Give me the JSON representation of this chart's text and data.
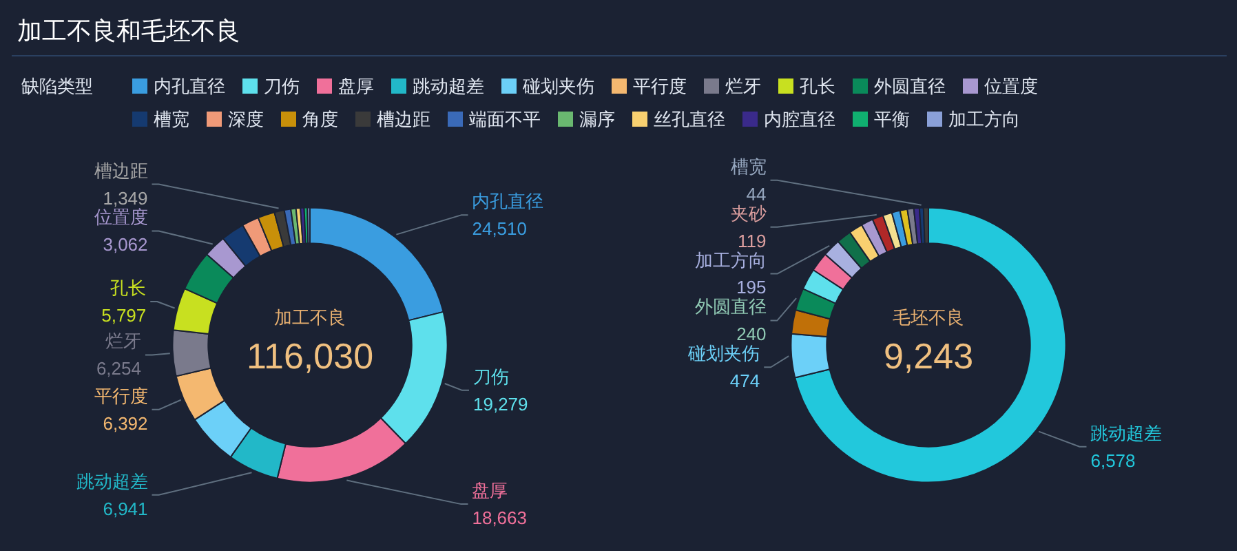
{
  "chart_data": [
    {
      "type": "donut",
      "title": "加工不良和毛坯不良",
      "subtitle": "加工不良",
      "annotations": [
        "116,030"
      ],
      "legend_title": "缺陷类型",
      "legend": "top",
      "categories": [
        "内孔直径",
        "刀伤",
        "盘厚",
        "跳动超差",
        "碰划夹伤",
        "平行度",
        "烂牙",
        "孔长",
        "外圆直径",
        "位置度",
        "槽宽",
        "深度",
        "角度",
        "槽边距",
        "端面不平",
        "漏序",
        "丝孔直径",
        "内腔直径",
        "平衡",
        "加工方向"
      ],
      "values": [
        24510,
        19279,
        18663,
        6941,
        7000,
        6392,
        6254,
        5797,
        5500,
        3062,
        3200,
        2300,
        2300,
        1349,
        900,
        700,
        600,
        500,
        450,
        333
      ],
      "colors": [
        "#3a9de0",
        "#5ee0ec",
        "#f0709a",
        "#22b8c8",
        "#6cd0f8",
        "#f4b870",
        "#7a7a8c",
        "#c8e020",
        "#0a8a5a",
        "#a898d0",
        "#153a70",
        "#f09a78",
        "#c8900a",
        "#3a3a3a",
        "#3a6ab8",
        "#6ab870",
        "#f8d070",
        "#3a2a8a",
        "#10b070",
        "#8aa0d8"
      ],
      "value_labels": [
        "24,510",
        "19,279",
        "18,663",
        "6,941",
        null,
        "6,392",
        "6,254",
        "5,797",
        null,
        "3,062",
        null,
        null,
        null,
        "1,349",
        null,
        null,
        null,
        null,
        null,
        null
      ]
    },
    {
      "type": "donut",
      "subtitle": "毛坯不良",
      "annotations": [
        "9,243"
      ],
      "categories": [
        "跳动超差",
        "碰划夹伤",
        null,
        "外圆直径",
        null,
        null,
        "加工方向",
        null,
        null,
        null,
        "夹砂",
        null,
        null,
        null,
        null,
        null,
        "槽宽",
        null
      ],
      "values": [
        6578,
        474,
        260,
        240,
        230,
        210,
        195,
        160,
        150,
        130,
        119,
        100,
        90,
        80,
        70,
        60,
        44,
        53
      ],
      "colors": [
        "#22c8dc",
        "#6cd0f8",
        "#c07008",
        "#0a8a5a",
        "#5ee0ec",
        "#f0709a",
        "#a8b0e0",
        "#10704a",
        "#f8d070",
        "#a898d0",
        "#b02828",
        "#f4e090",
        "#3a9de0",
        "#e0c020",
        "#7a7a8c",
        "#3a2a8a",
        "#153a70",
        "#3a3a3a"
      ],
      "value_labels": [
        "6,578",
        "474",
        null,
        "240",
        null,
        null,
        "195",
        null,
        null,
        null,
        "119",
        null,
        null,
        null,
        null,
        null,
        "44",
        null
      ]
    }
  ]
}
